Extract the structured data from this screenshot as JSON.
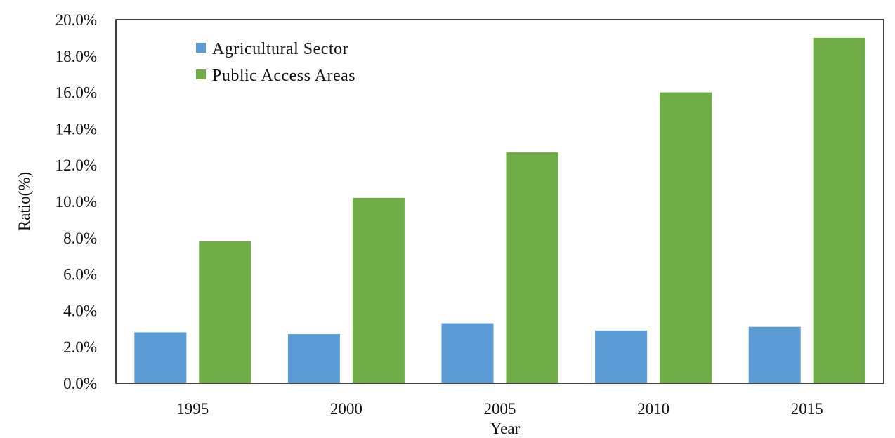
{
  "chart_data": {
    "type": "bar",
    "title": "",
    "xlabel": "Year",
    "ylabel": "Ratio(%)",
    "categories": [
      "1995",
      "2000",
      "2005",
      "2010",
      "2015"
    ],
    "series": [
      {
        "name": "Agricultural Sector",
        "color": "#5b9bd5",
        "values": [
          2.8,
          2.7,
          3.3,
          2.9,
          3.1
        ]
      },
      {
        "name": "Public Access Areas",
        "color": "#70ad47",
        "values": [
          7.8,
          10.2,
          12.7,
          16.0,
          19.0
        ]
      }
    ],
    "ylim": [
      0,
      20
    ],
    "yticks": [
      "0.0%",
      "2.0%",
      "4.0%",
      "6.0%",
      "8.0%",
      "10.0%",
      "12.0%",
      "14.0%",
      "16.0%",
      "18.0%",
      "20.0%"
    ],
    "grid": false,
    "legend_position": "top-left"
  }
}
